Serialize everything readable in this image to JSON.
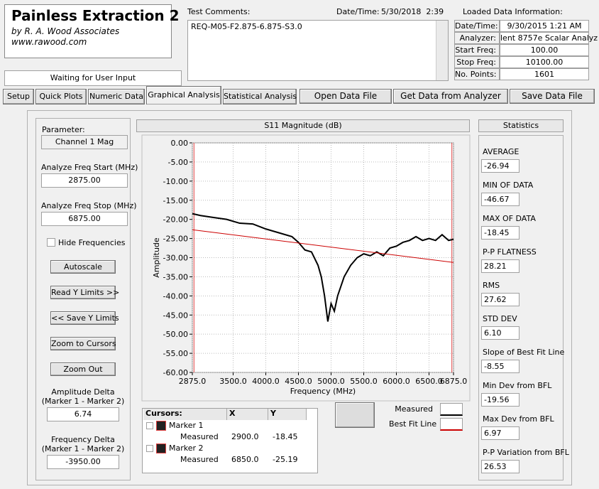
{
  "app": {
    "title": "Painless Extraction 2",
    "subtitle": "by R. A. Wood Associates",
    "website": "www.rawood.com",
    "status": "Waiting for User Input"
  },
  "comments": {
    "label": "Test Comments:",
    "text": "REQ-M05-F2.875-6.875-S3.0",
    "datetime_label": "Date/Time:",
    "datetime": "5/30/2018  2:39"
  },
  "loaded": {
    "title": "Loaded Data Information:",
    "rows": [
      [
        "Date/Time:",
        "9/30/2015 1:21 AM"
      ],
      [
        "Analyzer:",
        "lent 8757e Scalar Analyz"
      ],
      [
        "Start Freq:",
        "100.00"
      ],
      [
        "Stop Freq:",
        "10100.00"
      ],
      [
        "No. Points:",
        "1601"
      ]
    ]
  },
  "tabs": [
    "Setup",
    "Quick Plots",
    "Numeric Data",
    "Graphical Analysis",
    "Statistical Analysis"
  ],
  "buttons": [
    "Open Data File",
    "Get Data from Analyzer",
    "Save Data File"
  ],
  "left": {
    "parameter_label": "Parameter:",
    "parameter": "Channel 1 Mag",
    "start_label": "Analyze Freq Start (MHz)",
    "start": "2875.00",
    "stop_label": "Analyze Freq Stop (MHz)",
    "stop": "6875.00",
    "hide": "Hide Frequencies",
    "buttons": [
      "Autoscale",
      "Read Y Limits >>",
      "<< Save Y Limits",
      "Zoom to Cursors",
      "Zoom Out"
    ],
    "amp_delta_label": [
      "Amplitude Delta",
      "(Marker 1 - Marker 2)"
    ],
    "amp_delta": "6.74",
    "freq_delta_label": [
      "Frequency Delta",
      "(Marker 1 - Marker 2)"
    ],
    "freq_delta": "-3950.00"
  },
  "cursors_table": {
    "header": [
      "Cursors:",
      "X",
      "Y"
    ],
    "rows": [
      {
        "name": "Marker 1",
        "sub": "Measured"
      },
      {
        "name": "Marker 2",
        "sub": "Measured"
      }
    ]
  },
  "statistics": {
    "title": "Statistics",
    "items": [
      [
        "AVERAGE",
        "-26.94"
      ],
      [
        "MIN OF DATA",
        "-46.67"
      ],
      [
        "MAX OF DATA",
        "-18.45"
      ],
      [
        "P-P FLATNESS",
        "28.21"
      ],
      [
        "RMS",
        "27.62"
      ],
      [
        "STD DEV",
        "6.10"
      ],
      [
        "Slope of Best Fit Line",
        "-8.55"
      ],
      [
        "Min Dev from BFL",
        "-19.56"
      ],
      [
        "Max Dev from BFL",
        "6.97"
      ],
      [
        "P-P Variation from BFL",
        "26.53"
      ]
    ]
  },
  "chart_data": {
    "type": "line",
    "title": "S11 Magnitude (dB)",
    "x_label": "Frequency (MHz)",
    "y_label": "Amplitude",
    "x": [
      2875,
      3000,
      3200,
      3400,
      3600,
      3800,
      4000,
      4200,
      4400,
      4500,
      4600,
      4700,
      4800,
      4850,
      4900,
      4950,
      5000,
      5050,
      5100,
      5200,
      5300,
      5400,
      5500,
      5600,
      5700,
      5800,
      5900,
      6000,
      6100,
      6200,
      6300,
      6400,
      6500,
      6600,
      6700,
      6800,
      6875
    ],
    "series": [
      {
        "name": "Measured",
        "color": "#000000",
        "values": [
          -18.5,
          -19,
          -19.5,
          -20,
          -21,
          -21.2,
          -22.5,
          -23.5,
          -24.5,
          -26,
          -28,
          -28.5,
          -32,
          -35,
          -40,
          -46.7,
          -42,
          -44,
          -40,
          -35,
          -32,
          -30,
          -29,
          -29.5,
          -28.5,
          -29.5,
          -27.5,
          -27,
          -26,
          -25.5,
          -24.5,
          -25.5,
          -25,
          -25.5,
          -24,
          -25.5,
          -25.2
        ]
      },
      {
        "name": "Best Fit Line",
        "color": "#cc0000",
        "x": [
          2875,
          6875
        ],
        "values": [
          -22.7,
          -31.25
        ]
      }
    ],
    "cursors": [
      {
        "x": 2900,
        "x_label": "2900.0",
        "y": -18.45,
        "y_label": "-18.45"
      },
      {
        "x": 6850,
        "x_label": "6850.0",
        "y": -25.19,
        "y_label": "-25.19"
      }
    ],
    "xlim": [
      2875,
      6875
    ],
    "ylim": [
      -60,
      0
    ],
    "xticks": [
      {
        "value": 2875,
        "label": "2875.0"
      },
      {
        "value": 3500,
        "label": "3500.0"
      },
      {
        "value": 4000,
        "label": "4000.0"
      },
      {
        "value": 4500,
        "label": "4500.0"
      },
      {
        "value": 5000,
        "label": "5000.0"
      },
      {
        "value": 5500,
        "label": "5500.0"
      },
      {
        "value": 6000,
        "label": "6000.0"
      },
      {
        "value": 6500,
        "label": "6500.0"
      },
      {
        "value": 6875,
        "label": "6875.0"
      }
    ],
    "yticks": [
      {
        "value": 0,
        "label": "0.00"
      },
      {
        "value": -5,
        "label": "-5.00"
      },
      {
        "value": -10,
        "label": "-10.00"
      },
      {
        "value": -15,
        "label": "-15.00"
      },
      {
        "value": -20,
        "label": "-20.00"
      },
      {
        "value": -25,
        "label": "-25.00"
      },
      {
        "value": -30,
        "label": "-30.00"
      },
      {
        "value": -35,
        "label": "-35.00"
      },
      {
        "value": -40,
        "label": "-40.00"
      },
      {
        "value": -45,
        "label": "-45.00"
      },
      {
        "value": -50,
        "label": "-50.00"
      },
      {
        "value": -55,
        "label": "-55.00"
      },
      {
        "value": -60,
        "label": "-60.00"
      }
    ],
    "grid": true
  }
}
